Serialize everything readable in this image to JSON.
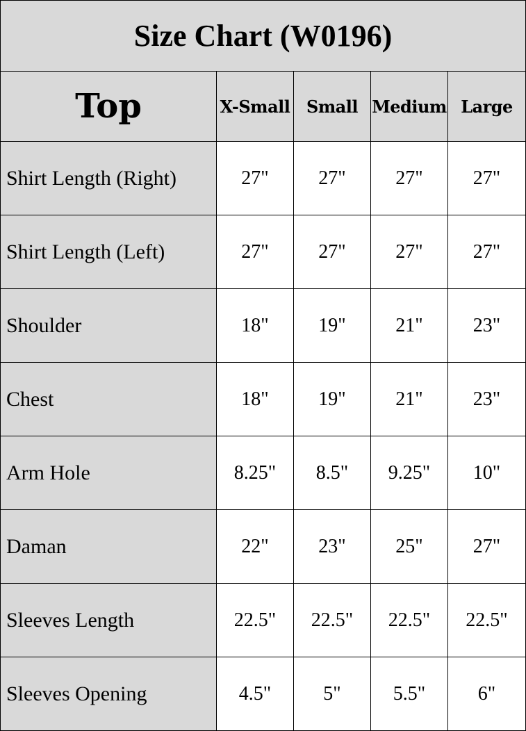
{
  "title": "Size Chart (W0196)",
  "header": {
    "section": "Top",
    "sizes": [
      "X-Small",
      "Small",
      "Medium",
      "Large"
    ]
  },
  "rows": [
    {
      "label": "Shirt Length (Right)",
      "values": [
        "27\"",
        "27\"",
        "27\"",
        "27\""
      ]
    },
    {
      "label": "Shirt Length (Left)",
      "values": [
        "27\"",
        "27\"",
        "27\"",
        "27\""
      ]
    },
    {
      "label": "Shoulder",
      "values": [
        "18\"",
        "19\"",
        "21\"",
        "23\""
      ]
    },
    {
      "label": "Chest",
      "values": [
        "18\"",
        "19\"",
        "21\"",
        "23\""
      ]
    },
    {
      "label": "Arm Hole",
      "values": [
        "8.25\"",
        "8.5\"",
        "9.25\"",
        "10\""
      ]
    },
    {
      "label": "Daman",
      "values": [
        "22\"",
        "23\"",
        "25\"",
        "27\""
      ]
    },
    {
      "label": "Sleeves Length",
      "values": [
        "22.5\"",
        "22.5\"",
        "22.5\"",
        "22.5\""
      ]
    },
    {
      "label": "Sleeves Opening",
      "values": [
        "4.5\"",
        "5\"",
        "5.5\"",
        "6\""
      ]
    }
  ],
  "colors": {
    "header_bg": "#d9d9d9",
    "cell_bg": "#ffffff",
    "border": "#000000"
  }
}
